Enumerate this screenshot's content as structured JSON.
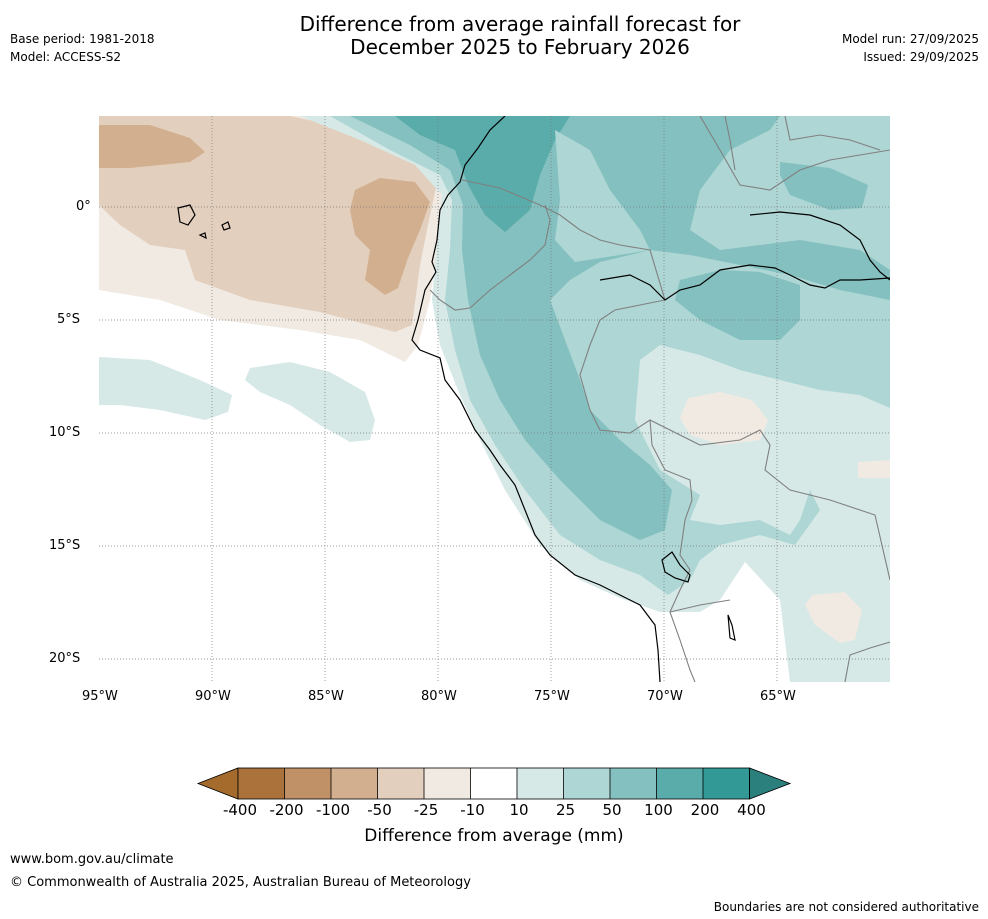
{
  "header": {
    "title_line1": "Difference from average rainfall forecast for",
    "title_line2": "December 2025 to February 2026",
    "base_period": "Base period: 1981-2018",
    "model": "Model: ACCESS-S2",
    "model_run": "Model run: 27/09/2025",
    "issued": "Issued: 29/09/2025"
  },
  "map": {
    "lat_labels": [
      "0°",
      "5°S",
      "10°S",
      "15°S",
      "20°S"
    ],
    "lon_labels": [
      "95°W",
      "90°W",
      "85°W",
      "80°W",
      "75°W",
      "70°W",
      "65°W"
    ]
  },
  "colorbar": {
    "ticks": [
      "-400",
      "-200",
      "-100",
      "-50",
      "-25",
      "-10",
      "10",
      "25",
      "50",
      "100",
      "200",
      "400"
    ],
    "colors": [
      "#A56B2D",
      "#AC723B",
      "#C09166",
      "#D2B08F",
      "#E3CFBE",
      "#F0EAE3",
      "#FFFFFF",
      "#D6E9E7",
      "#ADD6D4",
      "#84C0BF",
      "#5AACAB",
      "#339997",
      "#2B807E"
    ],
    "label": "Difference from average (mm)"
  },
  "footer": {
    "url": "www.bom.gov.au/climate",
    "copyright": "© Commonwealth of Australia 2025, Australian Bureau of Meteorology",
    "disclaimer": "Boundaries are not considered authoritative"
  }
}
